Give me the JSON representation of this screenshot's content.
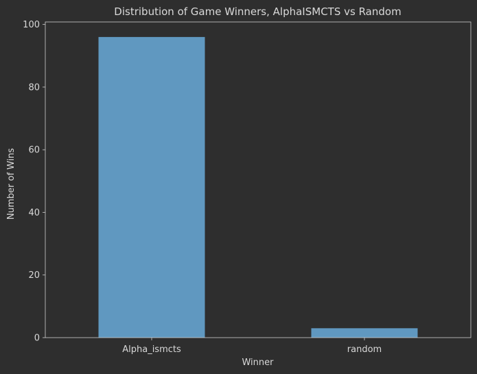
{
  "chart_data": {
    "type": "bar",
    "title": "Distribution of Game Winners, AlphaISMCTS vs Random",
    "xlabel": "Winner",
    "ylabel": "Number of Wins",
    "categories": [
      "Alpha_ismcts",
      "random"
    ],
    "values": [
      96,
      3
    ],
    "ylim": [
      0,
      100.8
    ],
    "yticks": [
      0,
      20,
      40,
      60,
      80,
      100
    ],
    "grid": false,
    "bar_color": "#6098c0",
    "background_color": "#2e2e2e",
    "axis_color": "#d0d0d0",
    "text_color": "#d9d9d9"
  }
}
